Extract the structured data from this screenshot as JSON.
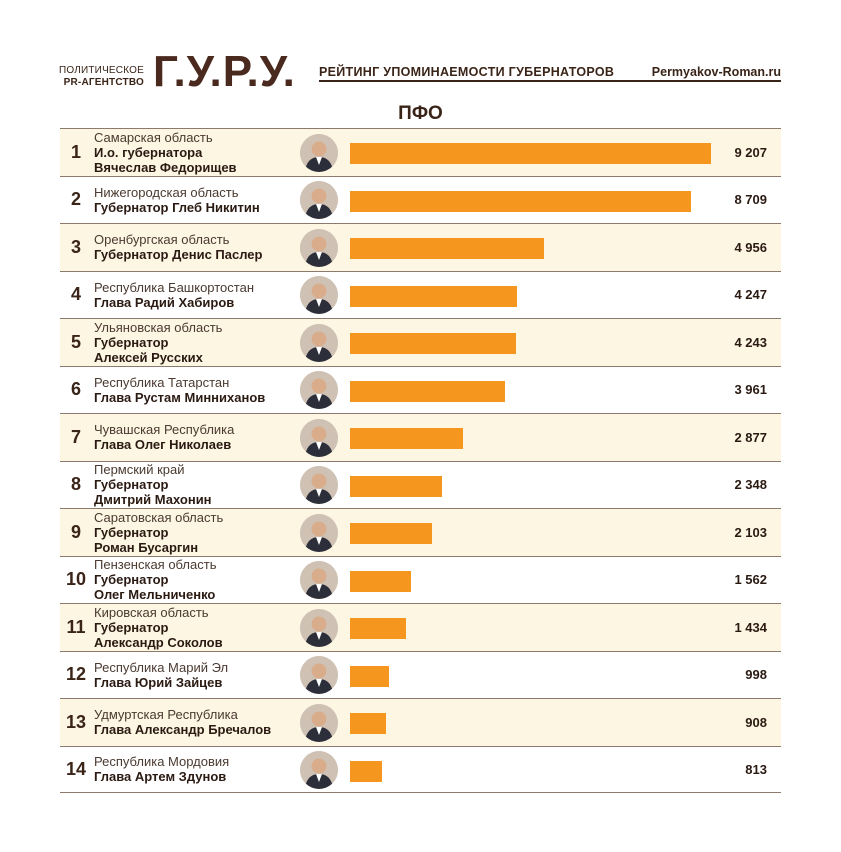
{
  "header": {
    "agency_line1": "ПОЛИТИЧЕСКОЕ",
    "agency_line2": "PR-АГЕНТСТВО",
    "logo": "Г.У.Р.У.",
    "title": "РЕЙТИНГ УПОМИНАЕМОСТИ ГУБЕРНАТОРОВ",
    "site": "Permyakov-Roman.ru"
  },
  "colors": {
    "bar": "#f5961e",
    "text": "#3a2418",
    "row_shade": "#fdf6e3"
  },
  "chart_data": {
    "type": "bar",
    "title": "ПФО",
    "orientation": "horizontal",
    "value_max": 9207,
    "rows": [
      {
        "rank": "1",
        "region": "Самарская область",
        "lines": [
          "И.о. губернатора",
          "Вячеслав Федорищев"
        ],
        "value": 9207,
        "label": "9 207"
      },
      {
        "rank": "2",
        "region": "Нижегородская область",
        "lines": [
          "Губернатор Глеб Никитин"
        ],
        "value": 8709,
        "label": "8 709"
      },
      {
        "rank": "3",
        "region": "Оренбургская область",
        "lines": [
          "Губернатор Денис Паслер"
        ],
        "value": 4956,
        "label": "4 956"
      },
      {
        "rank": "4",
        "region": "Республика Башкортостан",
        "lines": [
          "Глава Радий Хабиров"
        ],
        "value": 4247,
        "label": "4 247"
      },
      {
        "rank": "5",
        "region": "Ульяновская область",
        "lines": [
          "Губернатор",
          "Алексей Русских"
        ],
        "value": 4243,
        "label": "4 243"
      },
      {
        "rank": "6",
        "region": "Республика Татарстан",
        "lines": [
          "Глава Рустам Минниханов"
        ],
        "value": 3961,
        "label": "3 961"
      },
      {
        "rank": "7",
        "region": "Чувашская Республика",
        "lines": [
          "Глава Олег Николаев"
        ],
        "value": 2877,
        "label": "2 877"
      },
      {
        "rank": "8",
        "region": "Пермский край",
        "lines": [
          "Губернатор",
          "Дмитрий Махонин"
        ],
        "value": 2348,
        "label": "2 348"
      },
      {
        "rank": "9",
        "region": "Саратовская область",
        "lines": [
          "Губернатор",
          "Роман Бусаргин"
        ],
        "value": 2103,
        "label": "2 103"
      },
      {
        "rank": "10",
        "region": "Пензенская область",
        "lines": [
          "Губернатор",
          "Олег Мельниченко"
        ],
        "value": 1562,
        "label": "1 562"
      },
      {
        "rank": "11",
        "region": "Кировская область",
        "lines": [
          "Губернатор",
          "Александр Соколов"
        ],
        "value": 1434,
        "label": "1 434"
      },
      {
        "rank": "12",
        "region": "Республика Марий Эл",
        "lines": [
          "Глава Юрий Зайцев"
        ],
        "value": 998,
        "label": "998"
      },
      {
        "rank": "13",
        "region": "Удмуртская Республика",
        "lines": [
          "Глава Александр Бречалов"
        ],
        "value": 908,
        "label": "908"
      },
      {
        "rank": "14",
        "region": "Республика Мордовия",
        "lines": [
          "Глава Артем Здунов"
        ],
        "value": 813,
        "label": "813"
      }
    ]
  }
}
